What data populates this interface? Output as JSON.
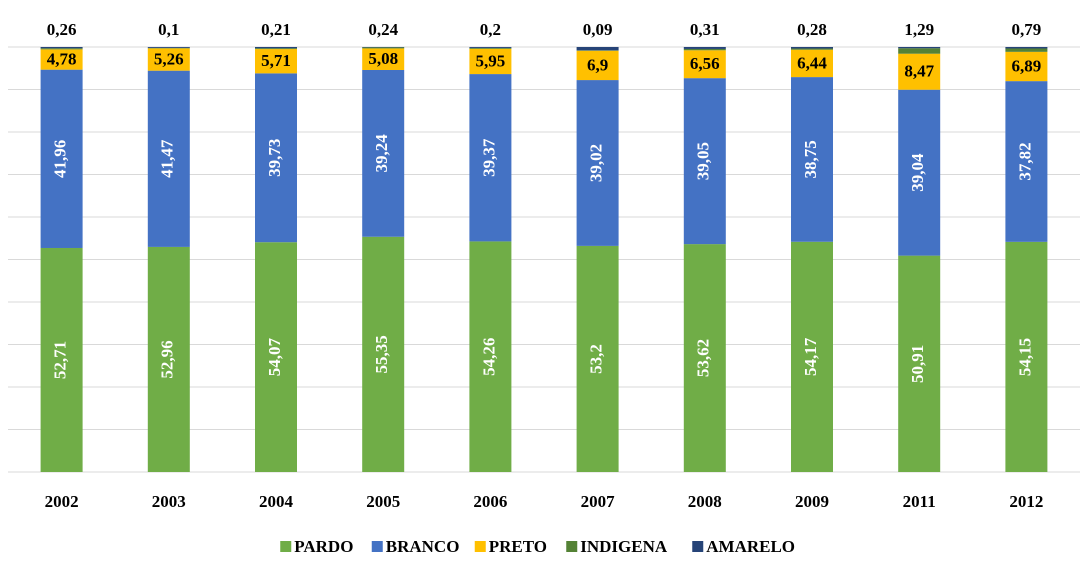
{
  "chart_data": {
    "type": "stacked_bar",
    "categories": [
      "2002",
      "2003",
      "2004",
      "2005",
      "2006",
      "2007",
      "2008",
      "2009",
      "2011",
      "2012"
    ],
    "series": [
      {
        "name": "PARDO",
        "color": "#70ad47",
        "values": [
          52.71,
          52.96,
          54.07,
          55.35,
          54.26,
          53.2,
          53.62,
          54.17,
          50.91,
          54.15
        ],
        "value_labels": [
          "52,71",
          "52,96",
          "54,07",
          "55,35",
          "54,26",
          "53,2",
          "53,62",
          "54,17",
          "50,91",
          "54,15"
        ]
      },
      {
        "name": "BRANCO",
        "color": "#4472c4",
        "values": [
          41.96,
          41.47,
          39.73,
          39.24,
          39.37,
          39.02,
          39.05,
          38.75,
          39.04,
          37.82
        ],
        "value_labels": [
          "41,96",
          "41,47",
          "39,73",
          "39,24",
          "39,37",
          "39,02",
          "39,05",
          "38,75",
          "39,04",
          "37,82"
        ]
      },
      {
        "name": "PRETO",
        "color": "#ffc000",
        "values": [
          4.78,
          5.26,
          5.71,
          5.08,
          5.95,
          6.9,
          6.56,
          6.44,
          8.47,
          6.89
        ],
        "value_labels": [
          "4,78",
          "5,26",
          "5,71",
          "5,08",
          "5,95",
          "6,9",
          "6,56",
          "6,44",
          "8,47",
          "6,89"
        ]
      },
      {
        "name": "INDIGENA",
        "color": "#548235",
        "values": [
          0.26,
          0.1,
          0.21,
          0.24,
          0.2,
          0.09,
          0.31,
          0.28,
          1.29,
          0.79
        ],
        "value_labels": [
          "0,26",
          "0,1",
          "0,21",
          "0,24",
          "0,2",
          "0,09",
          "0,31",
          "0,28",
          "1,29",
          "0,79"
        ]
      },
      {
        "name": "AMARELO",
        "color": "#264478",
        "values": [
          0.29,
          0.21,
          0.28,
          0.09,
          0.22,
          0.79,
          0.46,
          0.36,
          0.29,
          0.35
        ]
      }
    ],
    "ylim": [
      0,
      100
    ],
    "yticks": [
      0,
      10,
      20,
      30,
      40,
      50,
      60,
      70,
      80,
      90,
      100
    ],
    "grid": true
  }
}
